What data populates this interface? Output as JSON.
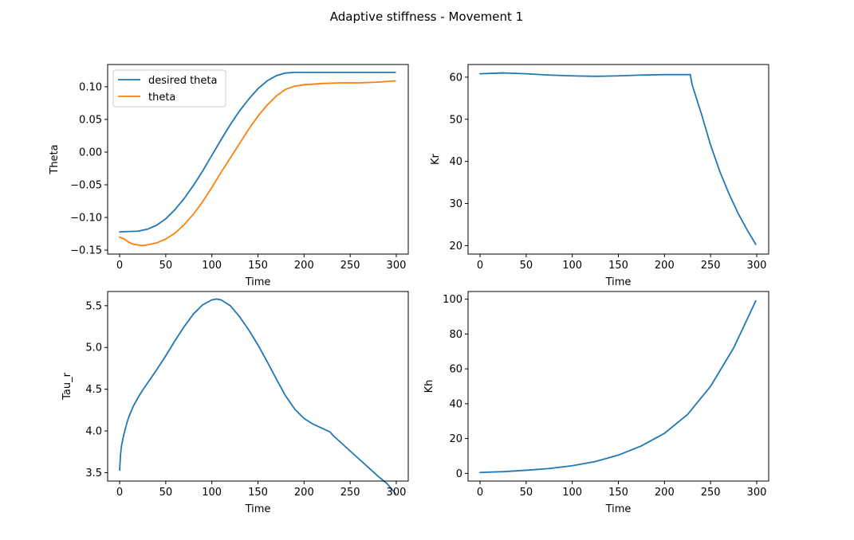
{
  "figure": {
    "title": "Adaptive stiffness - Movement 1"
  },
  "colors": {
    "blue": "#1f77b4",
    "orange": "#ff7f0e"
  },
  "chart_data": [
    {
      "id": "theta",
      "type": "line",
      "xlabel": "Time",
      "ylabel": "Theta",
      "xlim": [
        -13,
        313
      ],
      "ylim": [
        -0.156,
        0.134
      ],
      "xticks": [
        0,
        50,
        100,
        150,
        200,
        250,
        300
      ],
      "yticks": [
        -0.15,
        -0.1,
        -0.05,
        0.0,
        0.05,
        0.1
      ],
      "ytick_labels": [
        "−0.15",
        "−0.10",
        "−0.05",
        "0.00",
        "0.05",
        "0.10"
      ],
      "legend": {
        "position": "top-left"
      },
      "series": [
        {
          "name": "desired theta",
          "color": "#1f77b4",
          "x": [
            0,
            20,
            30,
            40,
            50,
            60,
            70,
            80,
            90,
            100,
            110,
            120,
            130,
            140,
            150,
            160,
            170,
            180,
            190,
            200,
            250,
            299
          ],
          "y": [
            -0.122,
            -0.121,
            -0.118,
            -0.112,
            -0.102,
            -0.088,
            -0.071,
            -0.051,
            -0.029,
            -0.005,
            0.019,
            0.042,
            0.063,
            0.081,
            0.097,
            0.109,
            0.117,
            0.121,
            0.122,
            0.122,
            0.122,
            0.122
          ]
        },
        {
          "name": "theta",
          "color": "#ff7f0e",
          "x": [
            0,
            5,
            10,
            15,
            20,
            25,
            30,
            40,
            50,
            60,
            70,
            80,
            90,
            100,
            110,
            120,
            130,
            140,
            150,
            160,
            170,
            180,
            190,
            200,
            220,
            240,
            260,
            280,
            299
          ],
          "y": [
            -0.13,
            -0.133,
            -0.138,
            -0.141,
            -0.142,
            -0.143,
            -0.142,
            -0.139,
            -0.133,
            -0.124,
            -0.111,
            -0.095,
            -0.076,
            -0.054,
            -0.031,
            -0.009,
            0.013,
            0.035,
            0.055,
            0.072,
            0.086,
            0.096,
            0.101,
            0.103,
            0.105,
            0.106,
            0.106,
            0.107,
            0.109
          ]
        }
      ]
    },
    {
      "id": "kr",
      "type": "line",
      "xlabel": "Time",
      "ylabel": "Kr",
      "xlim": [
        -13,
        313
      ],
      "ylim": [
        18,
        63
      ],
      "xticks": [
        0,
        50,
        100,
        150,
        200,
        250,
        300
      ],
      "yticks": [
        20,
        30,
        40,
        50,
        60
      ],
      "ytick_labels": [
        "20",
        "30",
        "40",
        "50",
        "60"
      ],
      "series": [
        {
          "name": "Kr",
          "color": "#1f77b4",
          "x": [
            0,
            25,
            50,
            75,
            100,
            125,
            150,
            175,
            200,
            228,
            230,
            240,
            250,
            260,
            270,
            280,
            290,
            299
          ],
          "y": [
            60.8,
            61.0,
            60.8,
            60.5,
            60.3,
            60.2,
            60.3,
            60.5,
            60.6,
            60.6,
            58.2,
            51.3,
            43.9,
            37.6,
            32.3,
            27.6,
            23.6,
            20.3
          ]
        }
      ]
    },
    {
      "id": "tau",
      "type": "line",
      "xlabel": "Time",
      "ylabel": "Tau_r",
      "xlim": [
        -13,
        313
      ],
      "ylim": [
        3.4,
        5.67
      ],
      "xticks": [
        0,
        50,
        100,
        150,
        200,
        250,
        300
      ],
      "yticks": [
        3.5,
        4.0,
        4.5,
        5.0,
        5.5
      ],
      "ytick_labels": [
        "3.5",
        "4.0",
        "4.5",
        "5.0",
        "5.5"
      ],
      "series": [
        {
          "name": "Tau_r",
          "color": "#1f77b4",
          "x": [
            0,
            1,
            2,
            4,
            6,
            8,
            10,
            15,
            20,
            25,
            30,
            40,
            50,
            60,
            70,
            80,
            90,
            100,
            105,
            110,
            120,
            130,
            140,
            150,
            160,
            170,
            180,
            190,
            200,
            210,
            220,
            228,
            232,
            240,
            250,
            260,
            270,
            280,
            290,
            299
          ],
          "y": [
            3.53,
            3.72,
            3.82,
            3.93,
            4.02,
            4.1,
            4.17,
            4.3,
            4.4,
            4.49,
            4.57,
            4.73,
            4.9,
            5.08,
            5.25,
            5.4,
            5.51,
            5.57,
            5.58,
            5.57,
            5.5,
            5.37,
            5.21,
            5.03,
            4.83,
            4.62,
            4.42,
            4.26,
            4.15,
            4.08,
            4.03,
            3.99,
            3.94,
            3.86,
            3.76,
            3.66,
            3.56,
            3.46,
            3.37,
            3.25
          ]
        }
      ]
    },
    {
      "id": "kh",
      "type": "line",
      "xlabel": "Time",
      "ylabel": "Kh",
      "xlim": [
        -13,
        313
      ],
      "ylim": [
        -4.4,
        104.4
      ],
      "xticks": [
        0,
        50,
        100,
        150,
        200,
        250,
        300
      ],
      "yticks": [
        0,
        20,
        40,
        60,
        80,
        100
      ],
      "ytick_labels": [
        "0",
        "20",
        "40",
        "60",
        "80",
        "100"
      ],
      "series": [
        {
          "name": "Kh",
          "color": "#1f77b4",
          "x": [
            0,
            25,
            50,
            75,
            100,
            125,
            150,
            175,
            200,
            225,
            250,
            275,
            299
          ],
          "y": [
            0.5,
            1.0,
            1.8,
            2.8,
            4.4,
            6.8,
            10.5,
            15.8,
            23.0,
            33.8,
            50.0,
            72.0,
            99.0
          ]
        }
      ]
    }
  ]
}
